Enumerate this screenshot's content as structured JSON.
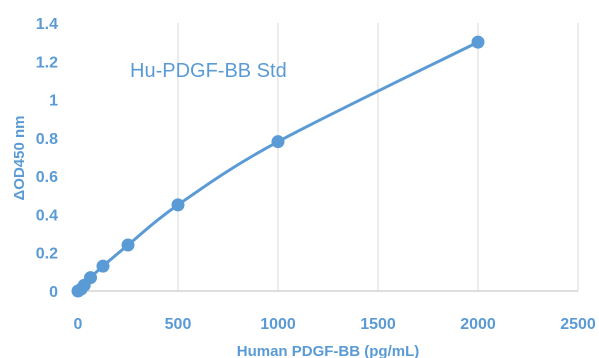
{
  "chart_data": {
    "type": "scatter",
    "title": "Hu-PDGF-BB Std",
    "xlabel": "Human PDGF-BB (pg/mL)",
    "ylabel": "ΔOD450 nm",
    "xlim": [
      0,
      2500
    ],
    "ylim": [
      0,
      1.4
    ],
    "xticks": [
      "0",
      "500",
      "1000",
      "1500",
      "2000",
      "2500"
    ],
    "yticks": [
      "0",
      "0.2",
      "0.4",
      "0.6",
      "0.8",
      "1",
      "1.2",
      "1.4"
    ],
    "grid": "vertical",
    "trendline": "smooth",
    "color": "#5b9bd5",
    "series": [
      {
        "x": [
          0,
          15.6,
          31.25,
          62.5,
          125,
          250,
          500,
          1000,
          2000
        ],
        "y": [
          0,
          0.01,
          0.03,
          0.07,
          0.13,
          0.24,
          0.45,
          0.78,
          1.3
        ]
      }
    ]
  }
}
